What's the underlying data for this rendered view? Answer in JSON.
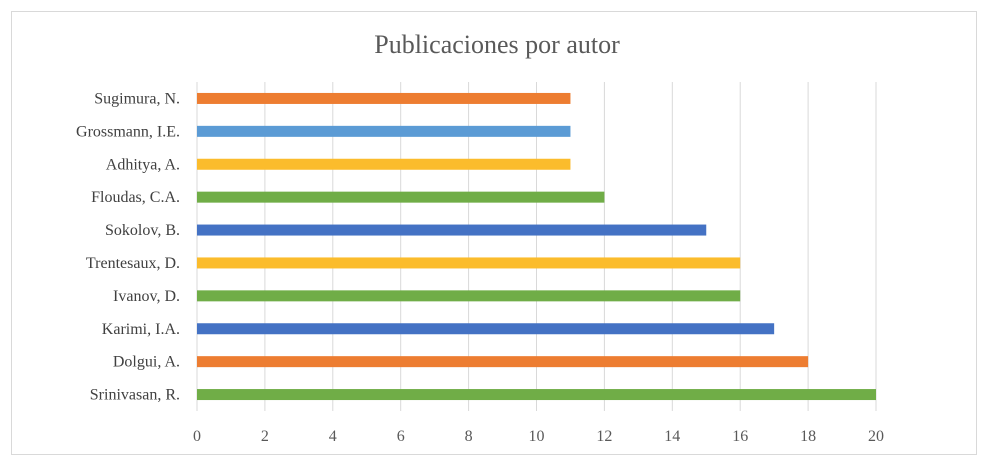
{
  "chart_data": {
    "type": "bar",
    "orientation": "horizontal",
    "title": "Publicaciones por autor",
    "xlabel": "",
    "ylabel": "",
    "xlim": [
      0,
      20
    ],
    "xticks": [
      0,
      2,
      4,
      6,
      8,
      10,
      12,
      14,
      16,
      18,
      20
    ],
    "grid": true,
    "legend": "none",
    "bars": [
      {
        "label": "Srinivasan, R.",
        "value": 20,
        "color": "#70ad47"
      },
      {
        "label": "Dolgui, A.",
        "value": 18,
        "color": "#ed7d31"
      },
      {
        "label": "Karimi, I.A.",
        "value": 17,
        "color": "#4472c4"
      },
      {
        "label": "Ivanov, D.",
        "value": 16,
        "color": "#70ad47"
      },
      {
        "label": "Trentesaux, D.",
        "value": 16,
        "color": "#fbbc2c"
      },
      {
        "label": "Sokolov, B.",
        "value": 15,
        "color": "#4472c4"
      },
      {
        "label": "Floudas, C.A.",
        "value": 12,
        "color": "#70ad47"
      },
      {
        "label": "Adhitya, A.",
        "value": 11,
        "color": "#fbbc2c"
      },
      {
        "label": "Grossmann, I.E.",
        "value": 11,
        "color": "#5b9bd5"
      },
      {
        "label": "Sugimura, N.",
        "value": 11,
        "color": "#ed7d31"
      }
    ]
  }
}
